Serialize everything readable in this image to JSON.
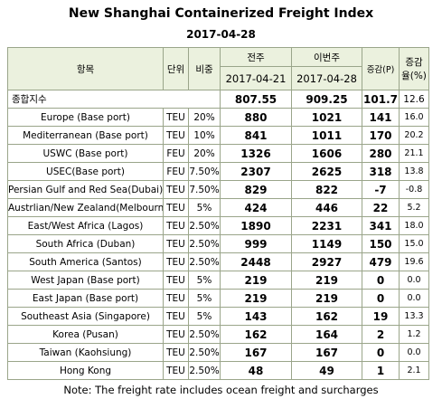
{
  "header": {
    "title": "New Shanghai Containerized Freight Index",
    "date": "2017-04-28"
  },
  "table": {
    "columns": {
      "item": "항목",
      "unit": "단위",
      "weight": "비중",
      "prev": "전주",
      "curr": "이번주",
      "prev_date": "2017-04-21",
      "curr_date": "2017-04-28",
      "change": "증감(P)",
      "rate": [
        "증감",
        "율(%)"
      ]
    },
    "composite": {
      "label": "종합지수",
      "prev": "807.55",
      "curr": "909.25",
      "change": "101.7",
      "rate": "12.6"
    },
    "rows": [
      [
        "Europe (Base port)",
        "TEU",
        "20%",
        "880",
        "1021",
        "141",
        "16.0"
      ],
      [
        "Mediterranean (Base port)",
        "TEU",
        "10%",
        "841",
        "1011",
        "170",
        "20.2"
      ],
      [
        "USWC (Base port)",
        "FEU",
        "20%",
        "1326",
        "1606",
        "280",
        "21.1"
      ],
      [
        "USEC(Base port)",
        "FEU",
        "7.50%",
        "2307",
        "2625",
        "318",
        "13.8"
      ],
      [
        "Persian Gulf and Red Sea(Dubai)",
        "TEU",
        "7.50%",
        "829",
        "822",
        "-7",
        "-0.8"
      ],
      [
        "Austrlian/New Zealand(Melbourne)",
        "TEU",
        "5%",
        "424",
        "446",
        "22",
        "5.2"
      ],
      [
        "East/West Africa (Lagos)",
        "TEU",
        "2.50%",
        "1890",
        "2231",
        "341",
        "18.0"
      ],
      [
        "South Africa (Duban)",
        "TEU",
        "2.50%",
        "999",
        "1149",
        "150",
        "15.0"
      ],
      [
        "South America (Santos)",
        "TEU",
        "2.50%",
        "2448",
        "2927",
        "479",
        "19.6"
      ],
      [
        "West Japan (Base port)",
        "TEU",
        "5%",
        "219",
        "219",
        "0",
        "0.0"
      ],
      [
        "East Japan (Base port)",
        "TEU",
        "5%",
        "219",
        "219",
        "0",
        "0.0"
      ],
      [
        "Southeast Asia (Singapore)",
        "TEU",
        "5%",
        "143",
        "162",
        "19",
        "13.3"
      ],
      [
        "Korea (Pusan)",
        "TEU",
        "2.50%",
        "162",
        "164",
        "2",
        "1.2"
      ],
      [
        "Taiwan (Kaohsiung)",
        "TEU",
        "2.50%",
        "167",
        "167",
        "0",
        "0.0"
      ],
      [
        "Hong Kong",
        "TEU",
        "2.50%",
        "48",
        "49",
        "1",
        "2.1"
      ]
    ]
  },
  "footer": {
    "note": "Note: The freight rate includes ocean freight and surcharges"
  }
}
